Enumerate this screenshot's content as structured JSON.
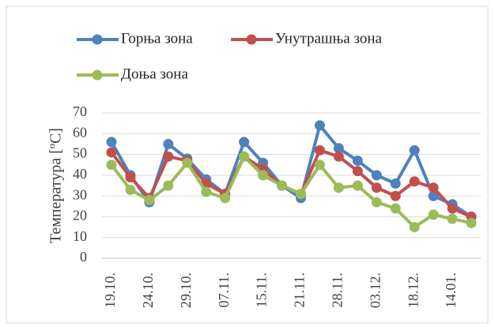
{
  "chart_data": {
    "type": "line",
    "ylabel": "Температура [ºC]",
    "categories": [
      "19.10.",
      null,
      "24.10.",
      null,
      "29.10.",
      null,
      "07.11.",
      null,
      "15.11.",
      null,
      "21.11.",
      null,
      "28.11.",
      null,
      "03.12.",
      null,
      "18.12.",
      null,
      "14.01.",
      null
    ],
    "series": [
      {
        "name": "Горња зона",
        "color": "#4f81bd",
        "values": [
          56,
          40,
          27,
          55,
          48,
          38,
          31,
          56,
          46,
          35,
          29,
          64,
          53,
          47,
          40,
          36,
          52,
          30,
          26,
          20
        ]
      },
      {
        "name": "Унутрашња зона",
        "color": "#c0504d",
        "values": [
          51,
          39,
          29,
          49,
          47,
          36,
          31,
          49,
          43,
          35,
          31,
          52,
          49,
          42,
          34,
          30,
          37,
          34,
          24,
          20
        ]
      },
      {
        "name": "Доња зона",
        "color": "#9bbb59",
        "values": [
          45,
          33,
          28,
          35,
          46,
          32,
          29,
          49,
          40,
          35,
          31,
          45,
          34,
          35,
          27,
          24,
          15,
          21,
          19,
          17
        ]
      }
    ],
    "ylim": [
      0,
      70
    ],
    "yticks": [
      0,
      10,
      20,
      30,
      40,
      50,
      60,
      70
    ],
    "grid": true,
    "legend": "top"
  }
}
